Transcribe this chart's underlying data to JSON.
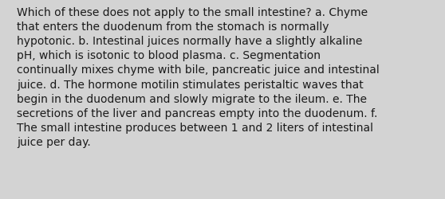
{
  "lines": [
    "Which of these does not apply to the small intestine? a. Chyme",
    "that enters the duodenum from the stomach is normally",
    "hypotonic. b. Intestinal juices normally have a slightly alkaline",
    "pH, which is isotonic to blood plasma. c. Segmentation",
    "continually mixes chyme with bile, pancreatic juice and intestinal",
    "juice. d. The hormone motilin stimulates peristaltic waves that",
    "begin in the duodenum and slowly migrate to the ileum. e. The",
    "secretions of the liver and pancreas empty into the duodenum. f.",
    "The small intestine produces between 1 and 2 liters of intestinal",
    "juice per day."
  ],
  "background_color": "#d3d3d3",
  "text_color": "#1a1a1a",
  "font_size": 10.0,
  "fig_width": 5.58,
  "fig_height": 2.51,
  "dpi": 100
}
